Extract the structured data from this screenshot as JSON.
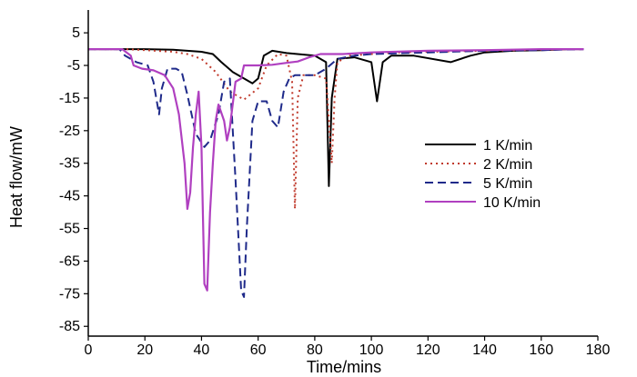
{
  "chart_data": {
    "type": "line",
    "xlabel": "Time/mins",
    "ylabel": "Heat flow/mW",
    "xlim": [
      0,
      180
    ],
    "ylim": [
      -88,
      12
    ],
    "xticks": [
      0,
      20,
      40,
      60,
      80,
      100,
      120,
      140,
      160,
      180
    ],
    "yticks": [
      5,
      -5,
      -15,
      -25,
      -35,
      -45,
      -55,
      -65,
      -75,
      -85
    ],
    "grid": false,
    "legend_position": "right",
    "series": [
      {
        "name": "1 K/min",
        "color": "#000000",
        "dash": "solid",
        "points": [
          [
            0,
            0
          ],
          [
            20,
            0
          ],
          [
            30,
            -0.2
          ],
          [
            40,
            -0.8
          ],
          [
            44,
            -1.5
          ],
          [
            47,
            -4
          ],
          [
            51,
            -7
          ],
          [
            55,
            -9
          ],
          [
            58,
            -10.5
          ],
          [
            60,
            -9
          ],
          [
            62,
            -2
          ],
          [
            65,
            -0.5
          ],
          [
            70,
            -1.2
          ],
          [
            80,
            -2
          ],
          [
            84,
            -4
          ],
          [
            85,
            -42
          ],
          [
            86,
            -15
          ],
          [
            88,
            -3
          ],
          [
            94,
            -2.5
          ],
          [
            100,
            -4
          ],
          [
            102,
            -16
          ],
          [
            104,
            -4
          ],
          [
            107,
            -2
          ],
          [
            115,
            -2
          ],
          [
            128,
            -4
          ],
          [
            135,
            -2
          ],
          [
            140,
            -1
          ],
          [
            150,
            -0.5
          ],
          [
            160,
            -0.3
          ],
          [
            170,
            0
          ],
          [
            175,
            0
          ]
        ]
      },
      {
        "name": "2 K/min",
        "color": "#c0392b",
        "dash": "dotted",
        "points": [
          [
            0,
            0
          ],
          [
            13,
            0
          ],
          [
            20,
            -0.3
          ],
          [
            30,
            -0.8
          ],
          [
            35,
            -1.5
          ],
          [
            40,
            -3
          ],
          [
            45,
            -7
          ],
          [
            50,
            -13
          ],
          [
            55,
            -15.5
          ],
          [
            60,
            -12
          ],
          [
            63,
            -5
          ],
          [
            67,
            -1.5
          ],
          [
            70,
            -2
          ],
          [
            72,
            -10
          ],
          [
            73,
            -49
          ],
          [
            74,
            -15
          ],
          [
            76,
            -8
          ],
          [
            80,
            -8
          ],
          [
            84,
            -9
          ],
          [
            86,
            -35
          ],
          [
            87,
            -15
          ],
          [
            88,
            -4
          ],
          [
            92,
            -2
          ],
          [
            100,
            -1.5
          ],
          [
            110,
            -1
          ],
          [
            120,
            -0.8
          ],
          [
            140,
            -0.5
          ],
          [
            160,
            -0.2
          ],
          [
            175,
            0
          ]
        ]
      },
      {
        "name": "5 K/min",
        "color": "#1f2a8a",
        "dash": "dashed",
        "points": [
          [
            0,
            0
          ],
          [
            11,
            0
          ],
          [
            13,
            -2
          ],
          [
            17,
            -4
          ],
          [
            21,
            -5
          ],
          [
            23,
            -10
          ],
          [
            25,
            -20
          ],
          [
            26,
            -12
          ],
          [
            28,
            -6
          ],
          [
            31,
            -6
          ],
          [
            33,
            -7
          ],
          [
            35,
            -14
          ],
          [
            38,
            -26
          ],
          [
            41,
            -30
          ],
          [
            43,
            -28
          ],
          [
            46,
            -20
          ],
          [
            48,
            -10
          ],
          [
            50,
            -9
          ],
          [
            52,
            -40
          ],
          [
            54,
            -74
          ],
          [
            55,
            -76
          ],
          [
            56,
            -55
          ],
          [
            58,
            -22
          ],
          [
            60,
            -16
          ],
          [
            63,
            -16
          ],
          [
            65,
            -22
          ],
          [
            67,
            -24
          ],
          [
            69,
            -13
          ],
          [
            71,
            -9
          ],
          [
            73,
            -8
          ],
          [
            80,
            -8
          ],
          [
            84,
            -6
          ],
          [
            88,
            -3
          ],
          [
            94,
            -2
          ],
          [
            100,
            -1.5
          ],
          [
            120,
            -1
          ],
          [
            140,
            -0.5
          ],
          [
            160,
            -0.3
          ],
          [
            175,
            0
          ]
        ]
      },
      {
        "name": "10 K/min",
        "color": "#b040c0",
        "dash": "solid",
        "points": [
          [
            0,
            0
          ],
          [
            12,
            0
          ],
          [
            15,
            -2
          ],
          [
            16,
            -5
          ],
          [
            19,
            -6
          ],
          [
            23,
            -6.5
          ],
          [
            27,
            -8
          ],
          [
            30,
            -12
          ],
          [
            32,
            -20
          ],
          [
            34,
            -35
          ],
          [
            35,
            -49
          ],
          [
            36,
            -44
          ],
          [
            37,
            -30
          ],
          [
            38,
            -20
          ],
          [
            39,
            -13
          ],
          [
            40,
            -30
          ],
          [
            41,
            -72
          ],
          [
            42,
            -74
          ],
          [
            43,
            -50
          ],
          [
            44,
            -35
          ],
          [
            45,
            -22
          ],
          [
            46,
            -17
          ],
          [
            48,
            -22
          ],
          [
            49,
            -28
          ],
          [
            50,
            -24
          ],
          [
            52,
            -10
          ],
          [
            54,
            -9
          ],
          [
            55,
            -5
          ],
          [
            60,
            -5
          ],
          [
            65,
            -4.8
          ],
          [
            70,
            -4.2
          ],
          [
            74,
            -3.8
          ],
          [
            78,
            -2.5
          ],
          [
            82,
            -1.5
          ],
          [
            90,
            -1.5
          ],
          [
            100,
            -1
          ],
          [
            120,
            -0.5
          ],
          [
            140,
            -0.3
          ],
          [
            160,
            0
          ],
          [
            175,
            0
          ]
        ]
      }
    ]
  }
}
